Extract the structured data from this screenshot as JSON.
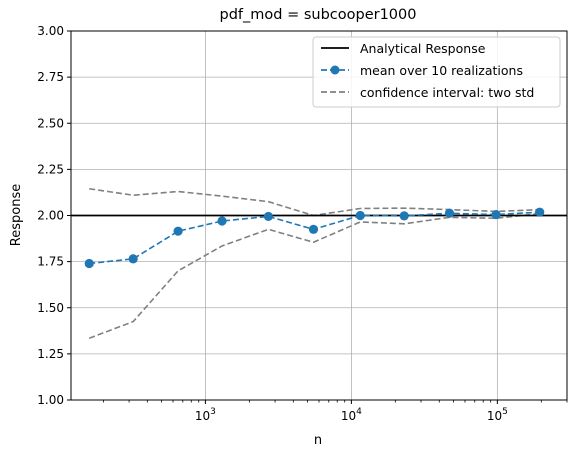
{
  "chart_data": {
    "type": "line",
    "title": "pdf_mod = subcooper1000",
    "xlabel": "n",
    "ylabel": "Response",
    "xscale": "log",
    "xlim": [
      120,
      300000
    ],
    "ylim": [
      1.0,
      3.0
    ],
    "grid": true,
    "legend_position": "top-right",
    "y_ticks": [
      "1.00",
      "1.25",
      "1.50",
      "1.75",
      "2.00",
      "2.25",
      "2.50",
      "2.75",
      "3.00"
    ],
    "x_ticks": [
      {
        "value": 1000,
        "base": "10",
        "exp": "3"
      },
      {
        "value": 10000,
        "base": "10",
        "exp": "4"
      },
      {
        "value": 100000,
        "base": "10",
        "exp": "5"
      }
    ],
    "x": [
      160,
      320,
      650,
      1300,
      2700,
      5500,
      11500,
      23000,
      47000,
      98000,
      195000
    ],
    "series": [
      {
        "name": "Analytical Response",
        "style": "solid",
        "color": "#000000",
        "constant": 2.0
      },
      {
        "name": "mean over 10 realizations",
        "style": "dashed-marker",
        "color": "#1f77b4",
        "values": [
          1.74,
          1.765,
          1.915,
          1.97,
          1.995,
          1.925,
          2.0,
          1.998,
          2.012,
          2.005,
          2.018
        ]
      },
      {
        "name": "confidence interval: two std",
        "style": "dashed",
        "color": "#808080",
        "upper": [
          2.145,
          2.11,
          2.13,
          2.105,
          2.075,
          2.0,
          2.038,
          2.04,
          2.032,
          2.022,
          2.032
        ],
        "lower": [
          1.335,
          1.425,
          1.7,
          1.835,
          1.925,
          1.855,
          1.965,
          1.955,
          1.99,
          1.985,
          2.01
        ]
      }
    ]
  }
}
